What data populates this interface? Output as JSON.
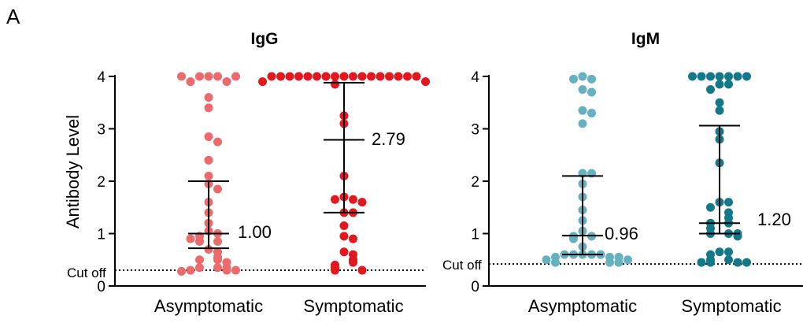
{
  "panel_label": "A",
  "chart_data": [
    {
      "type": "scatter",
      "title": "IgG",
      "ylabel": "Antibody Level",
      "ylim": [
        0,
        4
      ],
      "yticks": [
        "0",
        "1",
        "2",
        "3",
        "4"
      ],
      "cutoff_label": "Cut off",
      "cutoff_value": 0.3,
      "categories": [
        "Asymptomatic",
        "Symptomatic"
      ],
      "groups": [
        {
          "name": "Asymptomatic",
          "color": "#ED6A6C",
          "median_label": "1.00",
          "median": 1.0,
          "q1": 0.72,
          "q3": 2.0,
          "points": [
            4.0,
            4.0,
            4.0,
            3.9,
            3.9,
            4.0,
            4.0,
            3.6,
            3.4,
            2.85,
            2.75,
            2.4,
            2.1,
            1.95,
            1.85,
            1.6,
            1.4,
            1.2,
            1.05,
            1.0,
            0.95,
            0.85,
            0.85,
            0.9,
            0.7,
            0.65,
            0.55,
            0.5,
            0.5,
            0.45,
            0.35,
            0.35,
            0.35,
            0.3,
            0.3,
            0.3,
            0.28
          ]
        },
        {
          "name": "Symptomatic",
          "color": "#E3171E",
          "median_label": "2.79",
          "median": 2.79,
          "q1": 1.4,
          "q3": 3.88,
          "points": [
            4.0,
            4.0,
            4.0,
            4.0,
            4.0,
            4.0,
            4.0,
            4.0,
            4.0,
            4.0,
            4.0,
            4.0,
            4.0,
            4.0,
            4.0,
            4.0,
            4.0,
            3.9,
            3.9,
            3.85,
            3.25,
            3.1,
            2.1,
            1.7,
            1.65,
            1.65,
            1.6,
            1.4,
            1.4,
            1.15,
            0.95,
            0.9,
            0.65,
            0.6,
            0.5,
            0.45,
            0.4,
            0.35,
            0.3,
            0.3
          ]
        }
      ]
    },
    {
      "type": "scatter",
      "title": "IgM",
      "ylabel": "",
      "ylim": [
        0,
        4
      ],
      "yticks": [
        "0",
        "1",
        "2",
        "3",
        "4"
      ],
      "cutoff_label": "Cut off",
      "cutoff_value": 0.42,
      "categories": [
        "Asymptomatic",
        "Symptomatic"
      ],
      "groups": [
        {
          "name": "Asymptomatic",
          "color": "#66B1BF",
          "median_label": "0.96",
          "median": 0.96,
          "q1": 0.6,
          "q3": 2.1,
          "points": [
            4.0,
            3.95,
            3.95,
            3.75,
            3.7,
            3.35,
            3.3,
            3.1,
            2.15,
            2.15,
            1.95,
            1.7,
            1.45,
            1.25,
            1.05,
            0.95,
            0.95,
            0.9,
            0.75,
            0.6,
            0.6,
            0.6,
            0.6,
            0.6,
            0.55,
            0.55,
            0.55,
            0.5,
            0.5,
            0.45,
            0.45,
            0.45
          ]
        },
        {
          "name": "Symptomatic",
          "color": "#13798A",
          "median_label": "1.20",
          "median": 1.2,
          "q1": 1.0,
          "q3": 3.06,
          "points": [
            4.0,
            4.0,
            4.0,
            4.0,
            4.0,
            4.0,
            4.0,
            3.85,
            3.85,
            3.75,
            3.5,
            3.35,
            2.95,
            2.8,
            2.35,
            1.6,
            1.6,
            1.5,
            1.4,
            1.3,
            1.2,
            1.2,
            1.1,
            1.0,
            1.0,
            1.0,
            0.95,
            0.65,
            0.65,
            0.6,
            0.5,
            0.5,
            0.45,
            0.45,
            0.45,
            0.45
          ]
        }
      ]
    }
  ]
}
